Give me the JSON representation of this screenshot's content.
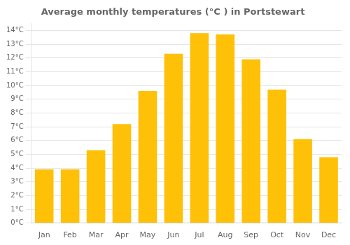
{
  "chart_data": {
    "type": "bar",
    "title": "Average monthly temperatures (°C ) in Portstewart",
    "categories": [
      "Jan",
      "Feb",
      "Mar",
      "Apr",
      "May",
      "Jun",
      "Jul",
      "Aug",
      "Sep",
      "Oct",
      "Nov",
      "Dec"
    ],
    "values": [
      3.9,
      3.9,
      5.3,
      7.2,
      9.6,
      12.3,
      13.8,
      13.7,
      11.9,
      9.7,
      6.1,
      4.8
    ],
    "color": "#FFC107",
    "ylim": [
      0,
      14.5
    ],
    "yticks": [
      {
        "value": 0,
        "label": "0°C"
      },
      {
        "value": 1,
        "label": "1°C"
      },
      {
        "value": 2,
        "label": "2°C"
      },
      {
        "value": 3,
        "label": "3°C"
      },
      {
        "value": 4,
        "label": "4°C"
      },
      {
        "value": 5,
        "label": "5°C"
      },
      {
        "value": 6,
        "label": "6°C"
      },
      {
        "value": 7,
        "label": "7°C"
      },
      {
        "value": 8,
        "label": "8°C"
      },
      {
        "value": 9,
        "label": "9°C"
      },
      {
        "value": 10,
        "label": "10°C"
      },
      {
        "value": 11,
        "label": "11°C"
      },
      {
        "value": 12,
        "label": "12°C"
      },
      {
        "value": 13,
        "label": "13°C"
      },
      {
        "value": 14,
        "label": "14°C"
      }
    ],
    "grid": true
  }
}
